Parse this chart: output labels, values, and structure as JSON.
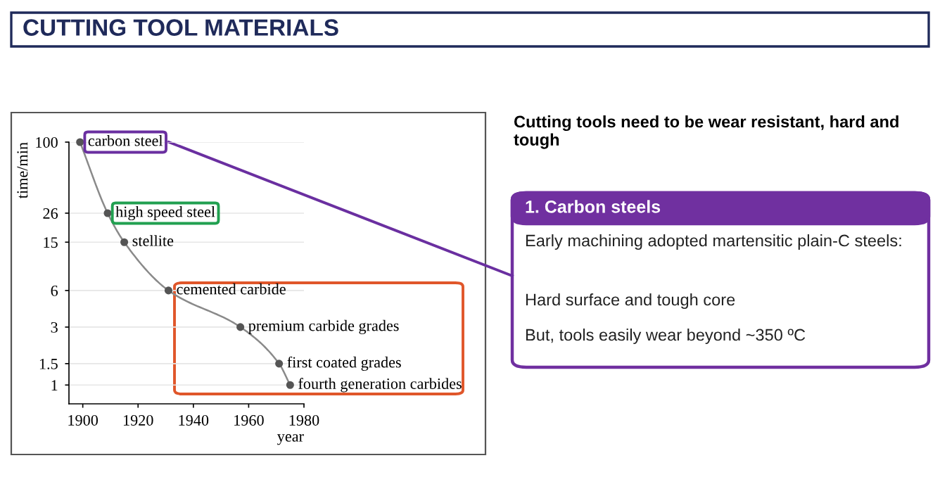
{
  "chart_data": {
    "type": "line",
    "title": "CUTTING TOOL MATERIALS",
    "xlabel": "year",
    "ylabel": "time/min",
    "x": [
      1899,
      1909,
      1915,
      1931,
      1957,
      1971,
      1975
    ],
    "series": [
      {
        "color": "#8a8a8a",
        "values": [
          100,
          26,
          15,
          6,
          3,
          1.5,
          1
        ]
      }
    ],
    "marker": "circle",
    "log": "y",
    "grid": "y",
    "xlim": [
      1895,
      1980
    ],
    "xticks": [
      1900,
      1920,
      1940,
      1960,
      1980
    ],
    "ylim": [
      0.7,
      100
    ],
    "yticks": [
      1,
      1.5,
      3,
      6,
      15,
      26,
      100
    ],
    "annotations": [
      {
        "text": "carbon steel",
        "x": 1899,
        "y": 100
      },
      {
        "text": "high speed steel",
        "x": 1909,
        "y": 26
      },
      {
        "text": "stellite",
        "x": 1915,
        "y": 15
      },
      {
        "text": "cemented carbide",
        "x": 1931,
        "y": 6
      },
      {
        "text": "premium carbide grades",
        "x": 1957,
        "y": 3
      },
      {
        "text": "first coated grades",
        "x": 1971,
        "y": 1.5
      },
      {
        "text": "fourth generation carbides",
        "x": 1975,
        "y": 1
      },
      "Cutting tools need to be wear resistant, hard and tough",
      "1. Carbon steels",
      "Early machining adopted martensitic plain-C steels:",
      "Hard surface and tough core",
      "But, tools easily wear beyond ~350 ºC"
    ]
  }
}
